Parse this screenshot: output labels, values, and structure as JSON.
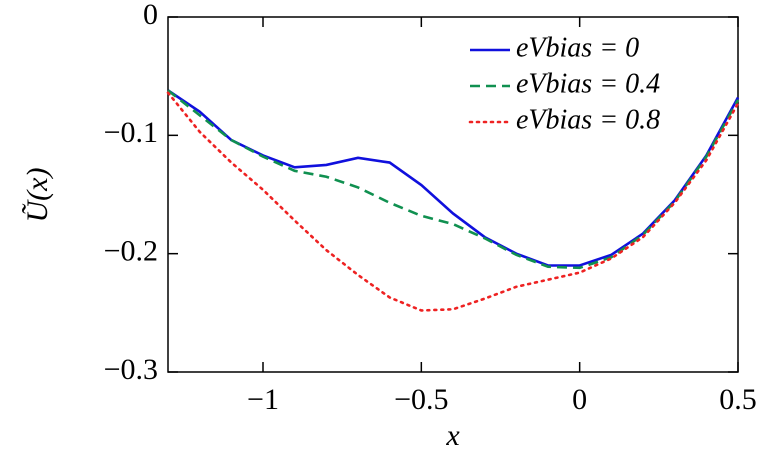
{
  "chart_data": {
    "type": "line",
    "xlabel": "x",
    "ylabel": "Ũ(x)",
    "x": [
      -1.3,
      -1.2,
      -1.1,
      -1.0,
      -0.9,
      -0.8,
      -0.7,
      -0.6,
      -0.5,
      -0.4,
      -0.3,
      -0.2,
      -0.1,
      0,
      0.1,
      0.2,
      0.3,
      0.4,
      0.5
    ],
    "series": [
      {
        "name": "eVbias = 0",
        "color": "#1010dd",
        "dash": "solid",
        "values": [
          -0.062,
          -0.08,
          -0.104,
          -0.117,
          -0.127,
          -0.125,
          -0.119,
          -0.123,
          -0.142,
          -0.166,
          -0.186,
          -0.2,
          -0.21,
          -0.21,
          -0.201,
          -0.183,
          -0.155,
          -0.117,
          -0.068
        ]
      },
      {
        "name": "eVbias = 0.4",
        "color": "#109050",
        "dash": "dashed",
        "values": [
          -0.062,
          -0.083,
          -0.104,
          -0.118,
          -0.13,
          -0.135,
          -0.144,
          -0.157,
          -0.168,
          -0.175,
          -0.187,
          -0.201,
          -0.211,
          -0.212,
          -0.203,
          -0.184,
          -0.156,
          -0.118,
          -0.07
        ]
      },
      {
        "name": "eVbias = 0.8",
        "color": "#ee2222",
        "dash": "dotted",
        "values": [
          -0.064,
          -0.097,
          -0.123,
          -0.146,
          -0.172,
          -0.197,
          -0.218,
          -0.237,
          -0.248,
          -0.247,
          -0.238,
          -0.228,
          -0.222,
          -0.216,
          -0.204,
          -0.186,
          -0.157,
          -0.121,
          -0.073
        ]
      }
    ],
    "xlim": [
      -1.3,
      0.5
    ],
    "ylim": [
      -0.3,
      0
    ],
    "xticks": [
      {
        "value": -1,
        "label": "−1"
      },
      {
        "value": -0.5,
        "label": "−0.5"
      },
      0,
      0.5
    ],
    "yticks": [
      {
        "value": -0.3,
        "label": "−0.3"
      },
      {
        "value": -0.2,
        "label": "−0.2"
      },
      {
        "value": -0.1,
        "label": "−0.1"
      },
      0
    ],
    "legend": "top-right",
    "grid": false
  }
}
